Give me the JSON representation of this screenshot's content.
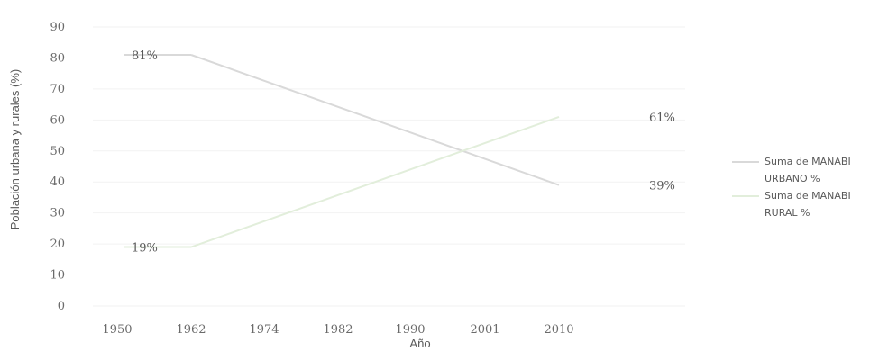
{
  "chart_data": {
    "type": "line",
    "categories": [
      "1950",
      "1962",
      "1974",
      "1982",
      "1990",
      "2001",
      "2010"
    ],
    "x_positions": [
      1950,
      1962,
      1974,
      1982,
      1990,
      2001,
      2010
    ],
    "series": [
      {
        "name": "Suma de MANABI URBANO %",
        "points": [
          [
            1962,
            81
          ],
          [
            2010,
            39
          ]
        ],
        "color": "#d9d9d9"
      },
      {
        "name": "Suma de MANABI RURAL %",
        "points": [
          [
            1962,
            19
          ],
          [
            2010,
            61
          ]
        ],
        "color": "#e2eedb"
      }
    ],
    "data_labels": [
      {
        "text": "81%",
        "x": 1950,
        "y": 81
      },
      {
        "text": "19%",
        "x": 1950,
        "y": 19
      },
      {
        "text": "61%",
        "x": 2010,
        "y": 61
      },
      {
        "text": "39%",
        "x": 2010,
        "y": 39
      }
    ],
    "title": "",
    "xlabel": "Año",
    "ylabel": "Población urbana y rurales (%)",
    "ylim": [
      0,
      90
    ],
    "yticks": [
      0,
      10,
      20,
      30,
      40,
      50,
      60,
      70,
      80,
      90
    ],
    "grid": true,
    "legend_position": "right"
  }
}
